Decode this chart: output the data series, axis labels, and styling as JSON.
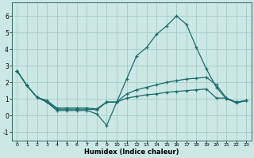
{
  "xlabel": "Humidex (Indice chaleur)",
  "background_color": "#cce8e4",
  "grid_color": "#aacfcb",
  "line_color": "#1a6b6b",
  "x_values": [
    0,
    1,
    2,
    3,
    4,
    5,
    6,
    7,
    8,
    9,
    10,
    11,
    12,
    13,
    14,
    15,
    16,
    17,
    18,
    19,
    20,
    21,
    22,
    23
  ],
  "series": [
    [
      2.7,
      1.8,
      1.1,
      0.8,
      0.3,
      0.3,
      0.3,
      0.3,
      0.1,
      -0.6,
      0.8,
      2.2,
      3.6,
      4.1,
      4.9,
      5.4,
      6.0,
      5.5,
      4.1,
      2.8,
      1.7,
      1.0,
      0.8,
      0.9
    ],
    [
      2.7,
      1.8,
      1.1,
      0.9,
      0.45,
      0.45,
      0.45,
      0.45,
      0.4,
      0.82,
      0.82,
      1.3,
      1.55,
      1.7,
      1.85,
      2.0,
      2.1,
      2.2,
      2.25,
      2.3,
      1.85,
      1.05,
      0.8,
      0.9
    ],
    [
      2.7,
      1.8,
      1.1,
      0.85,
      0.38,
      0.38,
      0.38,
      0.38,
      0.34,
      0.8,
      0.8,
      1.05,
      1.15,
      1.25,
      1.3,
      1.4,
      1.45,
      1.5,
      1.55,
      1.6,
      1.05,
      1.05,
      0.75,
      0.9
    ]
  ],
  "ylim": [
    -1.5,
    6.8
  ],
  "xlim": [
    -0.5,
    23.5
  ],
  "yticks": [
    -1,
    0,
    1,
    2,
    3,
    4,
    5,
    6
  ],
  "xticks": [
    0,
    1,
    2,
    3,
    4,
    5,
    6,
    7,
    8,
    9,
    10,
    11,
    12,
    13,
    14,
    15,
    16,
    17,
    18,
    19,
    20,
    21,
    22,
    23
  ]
}
